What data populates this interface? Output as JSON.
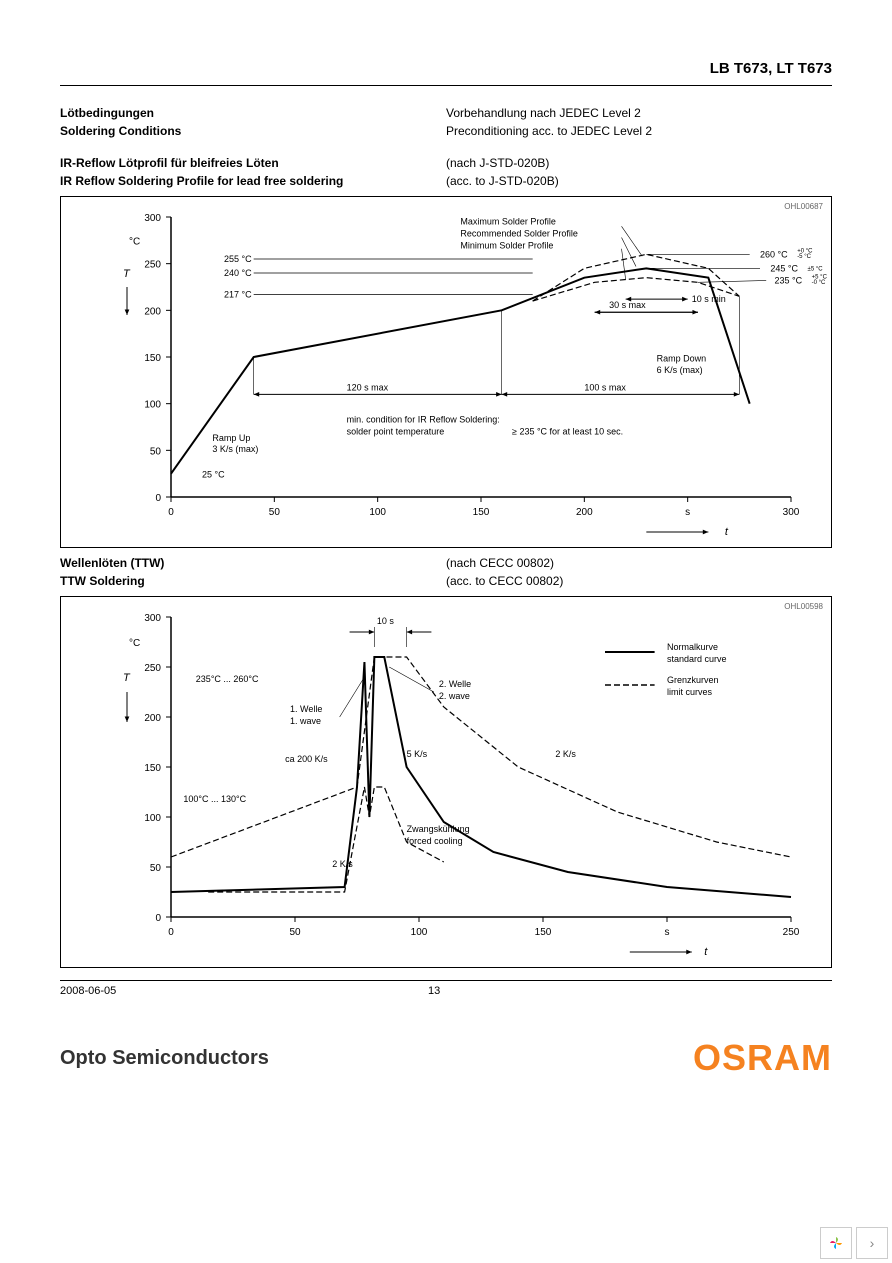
{
  "header": {
    "title": "LB T673, LT T673"
  },
  "section1": {
    "line1_de": "Lötbedingungen",
    "line1_en": "Soldering Conditions",
    "right1_de": "Vorbehandlung nach JEDEC Level 2",
    "right1_en": "Preconditioning acc. to JEDEC Level 2",
    "line2_de": "IR-Reflow Lötprofil für bleifreies Löten",
    "line2_en": "IR Reflow Soldering Profile for lead free soldering",
    "right2_de": "(nach J-STD-020B)",
    "right2_en": "(acc. to J-STD-020B)"
  },
  "section2": {
    "line1_de": "Wellenlöten (TTW)",
    "line1_en": "TTW Soldering",
    "right1_de": "(nach CECC 00802)",
    "right1_en": "(acc. to CECC 00802)"
  },
  "chart1": {
    "code": "OHL00687",
    "y_unit": "°C",
    "y_symbol": "T",
    "x_symbol": "t",
    "x_unit": "s",
    "y_ticks": [
      0,
      50,
      100,
      150,
      200,
      250,
      300
    ],
    "x_ticks": [
      0,
      50,
      100,
      150,
      200,
      250,
      300
    ],
    "main_curve": [
      [
        0,
        25
      ],
      [
        40,
        150
      ],
      [
        160,
        200
      ],
      [
        200,
        235
      ],
      [
        230,
        245
      ],
      [
        260,
        235
      ],
      [
        280,
        100
      ]
    ],
    "max_curve": [
      [
        175,
        210
      ],
      [
        200,
        245
      ],
      [
        230,
        260
      ],
      [
        260,
        245
      ],
      [
        275,
        215
      ]
    ],
    "rec_curve": [
      [
        175,
        210
      ],
      [
        200,
        235
      ],
      [
        230,
        245
      ],
      [
        260,
        235
      ],
      [
        275,
        215
      ]
    ],
    "min_curve": [
      [
        175,
        210
      ],
      [
        205,
        230
      ],
      [
        230,
        235
      ],
      [
        255,
        230
      ],
      [
        275,
        215
      ]
    ],
    "labels": {
      "t255": "255 °C",
      "t240": "240 °C",
      "t217": "217 °C",
      "max": "Maximum Solder Profile",
      "rec": "Recommended Solder Profile",
      "min": "Minimum Solder Profile",
      "t260": "260 °C",
      "t260tol": "+0 °C\n-5 °C",
      "t245": "245 °C",
      "t245tol": "±5 °C",
      "t235": "235 °C",
      "t235tol": "+5 °C\n-0 °C",
      "d10s": "10 s min",
      "d30s": "30 s max",
      "d120s": "120 s max",
      "d100s": "100 s max",
      "rampup1": "Ramp Up",
      "rampup2": "3 K/s (max)",
      "rampdn1": "Ramp Down",
      "rampdn2": "6 K/s (max)",
      "t25": "25 °C",
      "cond1": "min. condition for IR Reflow Soldering:",
      "cond2": "solder point temperature",
      "cond3": "≥  235 °C for at least 10 sec."
    }
  },
  "chart2": {
    "code": "OHL00598",
    "y_unit": "°C",
    "y_symbol": "T",
    "x_symbol": "t",
    "x_unit": "s",
    "y_ticks": [
      0,
      50,
      100,
      150,
      200,
      250,
      300
    ],
    "x_ticks": [
      0,
      50,
      100,
      150,
      200,
      250
    ],
    "std_curve": [
      [
        0,
        25
      ],
      [
        70,
        30
      ],
      [
        75,
        130
      ],
      [
        78,
        255
      ],
      [
        80,
        100
      ],
      [
        82,
        260
      ],
      [
        86,
        260
      ],
      [
        95,
        150
      ],
      [
        110,
        95
      ],
      [
        130,
        65
      ],
      [
        160,
        45
      ],
      [
        200,
        30
      ],
      [
        250,
        20
      ]
    ],
    "lim_upper": [
      [
        0,
        60
      ],
      [
        75,
        130
      ],
      [
        82,
        260
      ],
      [
        95,
        260
      ],
      [
        110,
        210
      ],
      [
        140,
        150
      ],
      [
        180,
        105
      ],
      [
        220,
        75
      ],
      [
        250,
        60
      ]
    ],
    "lim_lower": [
      [
        15,
        25
      ],
      [
        70,
        25
      ],
      [
        78,
        130
      ],
      [
        80,
        100
      ],
      [
        82,
        130
      ],
      [
        86,
        130
      ],
      [
        95,
        75
      ],
      [
        110,
        55
      ]
    ],
    "labels": {
      "range1": "235°C ... 260°C",
      "range2": "100°C ... 130°C",
      "d10s": "10 s",
      "w1a": "1. Welle",
      "w1b": "1. wave",
      "w2a": "2. Welle",
      "w2b": "2. wave",
      "r200": "ca 200 K/s",
      "r5": "5 K/s",
      "r2a": "2 K/s",
      "r2b": "2 K/s",
      "cool1": "Zwangskühlung",
      "cool2": "forced cooling",
      "leg1a": "Normalkurve",
      "leg1b": "standard curve",
      "leg2a": "Grenzkurven",
      "leg2b": "limit curves"
    }
  },
  "footer": {
    "date": "2008-06-05",
    "page": "13",
    "brand_left": "Opto Semiconductors",
    "brand_right": "OSRAM"
  }
}
